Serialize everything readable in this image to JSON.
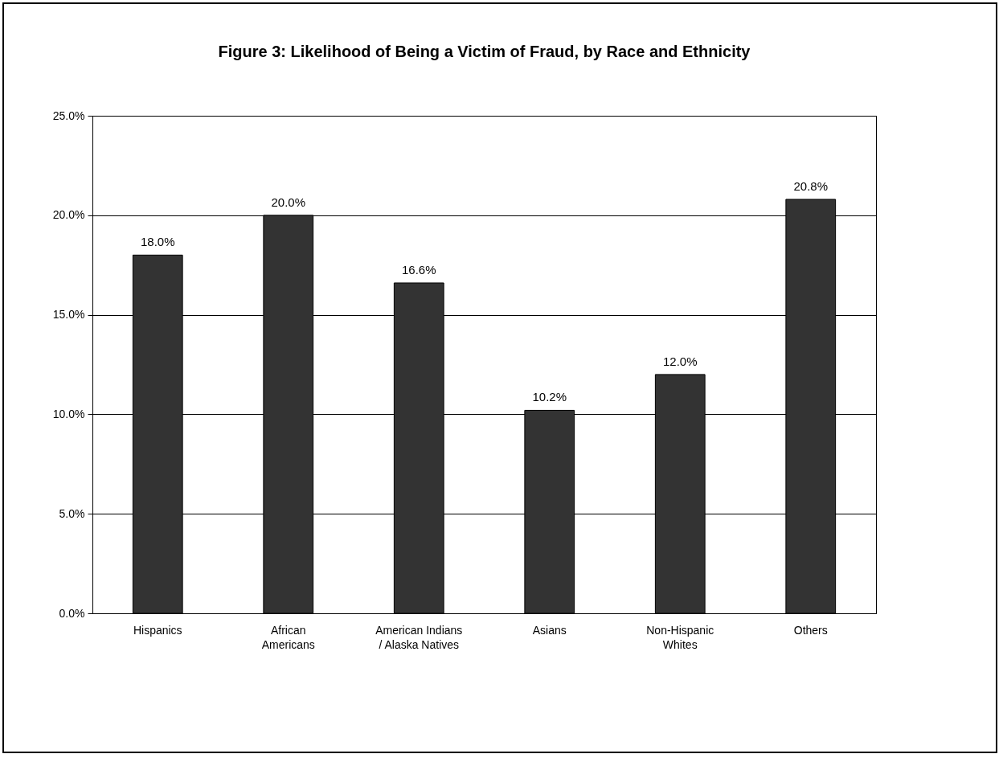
{
  "chart_data": {
    "type": "bar",
    "title": "Figure 3:  Likelihood of Being a Victim of Fraud, by Race and Ethnicity",
    "categories": [
      "Hispanics",
      "African Americans",
      "American Indians / Alaska Natives",
      "Asians",
      "Non-Hispanic Whites",
      "Others"
    ],
    "values": [
      18.0,
      20.0,
      16.6,
      10.2,
      12.0,
      20.8
    ],
    "value_labels": [
      "18.0%",
      "20.0%",
      "16.6%",
      "10.2%",
      "12.0%",
      "20.8%"
    ],
    "color": "#333333",
    "ylim": [
      0,
      25
    ],
    "yticks": [
      {
        "value": 0,
        "label": "0.0%"
      },
      {
        "value": 5,
        "label": "5.0%"
      },
      {
        "value": 10,
        "label": "10.0%"
      },
      {
        "value": 15,
        "label": "15.0%"
      },
      {
        "value": 20,
        "label": "20.0%"
      },
      {
        "value": 25,
        "label": "25.0%"
      }
    ],
    "grid": "y"
  }
}
